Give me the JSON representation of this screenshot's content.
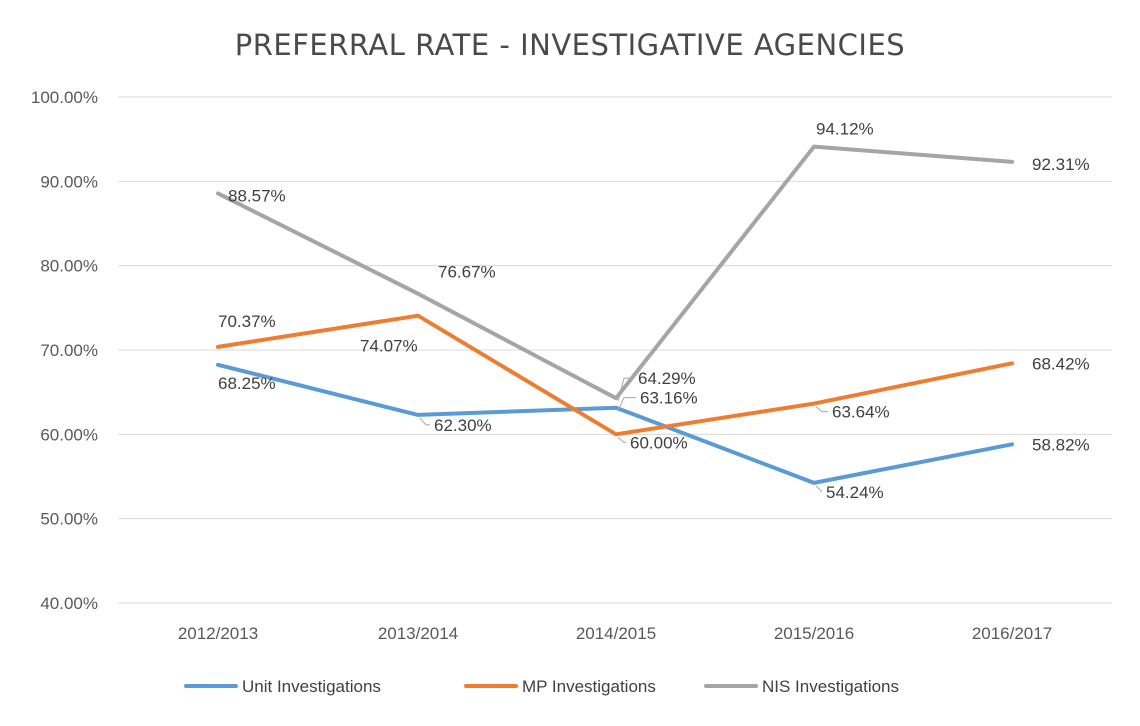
{
  "chart_data": {
    "type": "line",
    "title": "PREFERRAL RATE - INVESTIGATIVE AGENCIES",
    "xlabel": "",
    "ylabel": "",
    "categories": [
      "2012/2013",
      "2013/2014",
      "2014/2015",
      "2015/2016",
      "2016/2017"
    ],
    "ylim": [
      40,
      100
    ],
    "yticks": [
      100,
      90,
      80,
      70,
      60,
      50,
      40
    ],
    "ytick_labels": [
      "100.00%",
      "90.00%",
      "80.00%",
      "70.00%",
      "60.00%",
      "50.00%",
      "40.00%"
    ],
    "grid": true,
    "legend_position": "bottom",
    "series": [
      {
        "name": "Unit Investigations",
        "color": "#5b9bd5",
        "values": [
          68.25,
          62.3,
          63.16,
          54.24,
          58.82
        ],
        "labels": [
          "68.25%",
          "62.30%",
          "63.16%",
          "54.24%",
          "58.82%"
        ]
      },
      {
        "name": "MP Investigations",
        "color": "#ed7d31",
        "values": [
          70.37,
          74.07,
          60.0,
          63.64,
          68.42
        ],
        "labels": [
          "70.37%",
          "74.07%",
          "60.00%",
          "63.64%",
          "68.42%"
        ]
      },
      {
        "name": "NIS Investigations",
        "color": "#a5a5a5",
        "values": [
          88.57,
          76.67,
          64.29,
          94.12,
          92.31
        ],
        "labels": [
          "88.57%",
          "76.67%",
          "64.29%",
          "94.12%",
          "92.31%"
        ]
      }
    ]
  }
}
